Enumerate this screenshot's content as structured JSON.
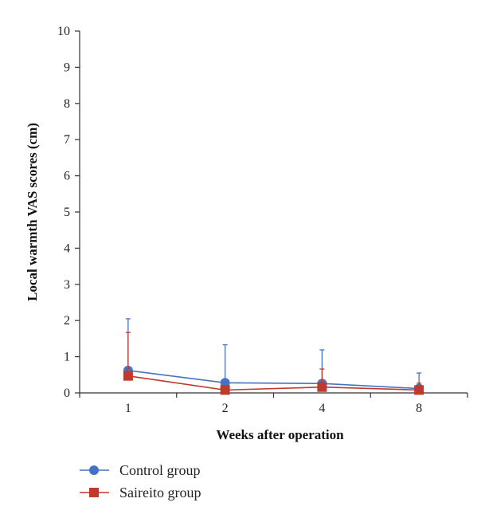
{
  "chart_data": {
    "type": "line",
    "xlabel": "Weeks after operation",
    "ylabel": "Local warmth VAS scores (cm)",
    "categories": [
      "1",
      "2",
      "4",
      "8"
    ],
    "ylim": [
      0,
      10
    ],
    "yticks": [
      0,
      1,
      2,
      3,
      4,
      5,
      6,
      7,
      8,
      9,
      10
    ],
    "grid": false,
    "legend_position": "bottom-left",
    "series": [
      {
        "name": "Control group",
        "color": "#4472C4",
        "marker": "circle",
        "values": [
          0.62,
          0.28,
          0.26,
          0.12
        ],
        "error_upper": [
          2.05,
          1.33,
          1.19,
          0.55
        ]
      },
      {
        "name": "Saireito group",
        "color": "#C0392B",
        "marker": "square",
        "values": [
          0.47,
          0.08,
          0.16,
          0.08
        ],
        "error_upper": [
          1.67,
          0.08,
          0.66,
          0.27
        ]
      }
    ]
  }
}
